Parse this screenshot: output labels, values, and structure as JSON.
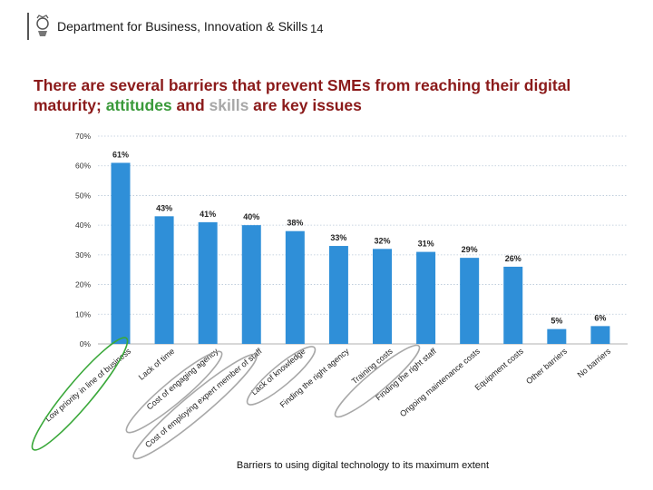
{
  "header": {
    "org_name": "Department for Business, Innovation & Skills",
    "page_number": "14",
    "logo_icon": "royal-crest-icon"
  },
  "headline": {
    "part1": "There are several barriers that prevent SMEs from reaching their digital maturity; ",
    "word_attitudes": "attitudes",
    "part2": " and ",
    "word_skills": "skills",
    "part3": " are key issues",
    "color_main": "#8b1a1a",
    "color_attitudes": "#3a9a3a",
    "color_skills": "#a8a8a8"
  },
  "chart_data": {
    "type": "bar",
    "title": "",
    "xlabel": "Barriers to using digital technology to its maximum extent",
    "ylabel": "",
    "ylim": [
      0,
      70
    ],
    "yticks": [
      "0%",
      "10%",
      "20%",
      "30%",
      "40%",
      "50%",
      "60%",
      "70%"
    ],
    "grid": true,
    "bar_color": "#2f8fd8",
    "categories": [
      "Low priority in line of business",
      "Lack of time",
      "Cost of engaging agency",
      "Cost of employing expert member of staff",
      "Lack of knowledge",
      "Finding the right agency",
      "Training costs",
      "Finding the right staff",
      "Ongoing maintenance costs",
      "Equipment costs",
      "Other barriers",
      "No barriers"
    ],
    "values": [
      61,
      43,
      41,
      40,
      38,
      33,
      32,
      31,
      29,
      26,
      5,
      6
    ],
    "data_labels": [
      "61%",
      "43%",
      "41%",
      "40%",
      "38%",
      "33%",
      "32%",
      "31%",
      "29%",
      "26%",
      "5%",
      "6%"
    ],
    "annotations": {
      "attitudes_color": "#3aa83a",
      "skills_color": "#a8a8a8"
    }
  }
}
